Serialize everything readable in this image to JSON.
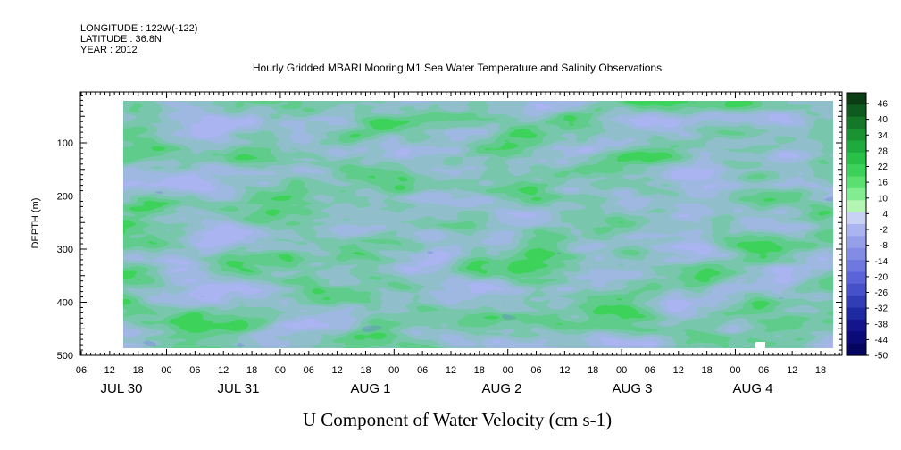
{
  "header": {
    "longitude": "LONGITUDE : 122W(-122)",
    "latitude": "LATITUDE : 36.8N",
    "year": "YEAR : 2012"
  },
  "chart_data": {
    "type": "heatmap",
    "title": "Hourly Gridded MBARI Mooring M1 Sea Water Temperature and Salinity Observations",
    "xlabel": "U Component of Water Velocity (cm s-1)",
    "ylabel": "DEPTH (m)",
    "x_hour_ticks": [
      "06",
      "12",
      "18",
      "00",
      "06",
      "12",
      "18",
      "00",
      "06",
      "12",
      "18",
      "00",
      "06",
      "12",
      "18",
      "00",
      "06",
      "12",
      "18",
      "00",
      "06",
      "12",
      "18",
      "00",
      "06",
      "12",
      "18"
    ],
    "x_day_labels": [
      "JUL 30",
      "JUL 31",
      "AUG  1",
      "AUG  2",
      "AUG  3",
      "AUG  4"
    ],
    "y_ticks": [
      100,
      200,
      300,
      400,
      500
    ],
    "y_tick_labels": [
      "100",
      "200",
      "300",
      "400",
      "500"
    ],
    "ylim": [
      500,
      0
    ],
    "data_depth_range_m": [
      20,
      485
    ],
    "colorbar": {
      "levels": [
        "46",
        "40",
        "34",
        "28",
        "22",
        "16",
        "10",
        "4",
        "-2",
        "-8",
        "-14",
        "-20",
        "-26",
        "-32",
        "-38",
        "-44",
        "-50"
      ],
      "range": [
        -50,
        52
      ],
      "palette": "blue (negative) to green (positive)"
    },
    "colors": {
      "positive_strong": "#18a048",
      "positive": "#3cd25a",
      "positive_weak": "#90ee90",
      "neutral": "#c8f4c8",
      "negative_weak": "#aab4f0",
      "negative": "#8c96e6",
      "negative_strong": "#6470dc"
    }
  }
}
